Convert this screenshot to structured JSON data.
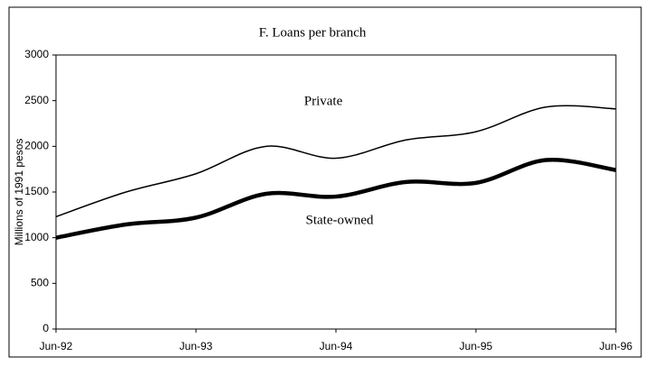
{
  "chart_data": {
    "type": "line",
    "title": "F. Loans per branch",
    "y_label": "Millions of 1991 pesos",
    "categories": [
      "Jun-92",
      null,
      "Jun-93",
      null,
      "Jun-94",
      null,
      "Jun-95",
      null,
      "Jun-96"
    ],
    "series": [
      {
        "name": "Private",
        "color": "#000000",
        "width": 1.5,
        "values": [
          1230,
          1500,
          1700,
          2000,
          1870,
          2070,
          2160,
          2430,
          2410
        ]
      },
      {
        "name": "State-owned",
        "color": "#000000",
        "width": 4.5,
        "values": [
          1000,
          1145,
          1220,
          1480,
          1450,
          1610,
          1600,
          1850,
          1740
        ]
      }
    ],
    "ylim": [
      0,
      3000
    ],
    "yticks": [
      0,
      500,
      1000,
      1500,
      2000,
      2500,
      3000
    ],
    "grid": false
  }
}
